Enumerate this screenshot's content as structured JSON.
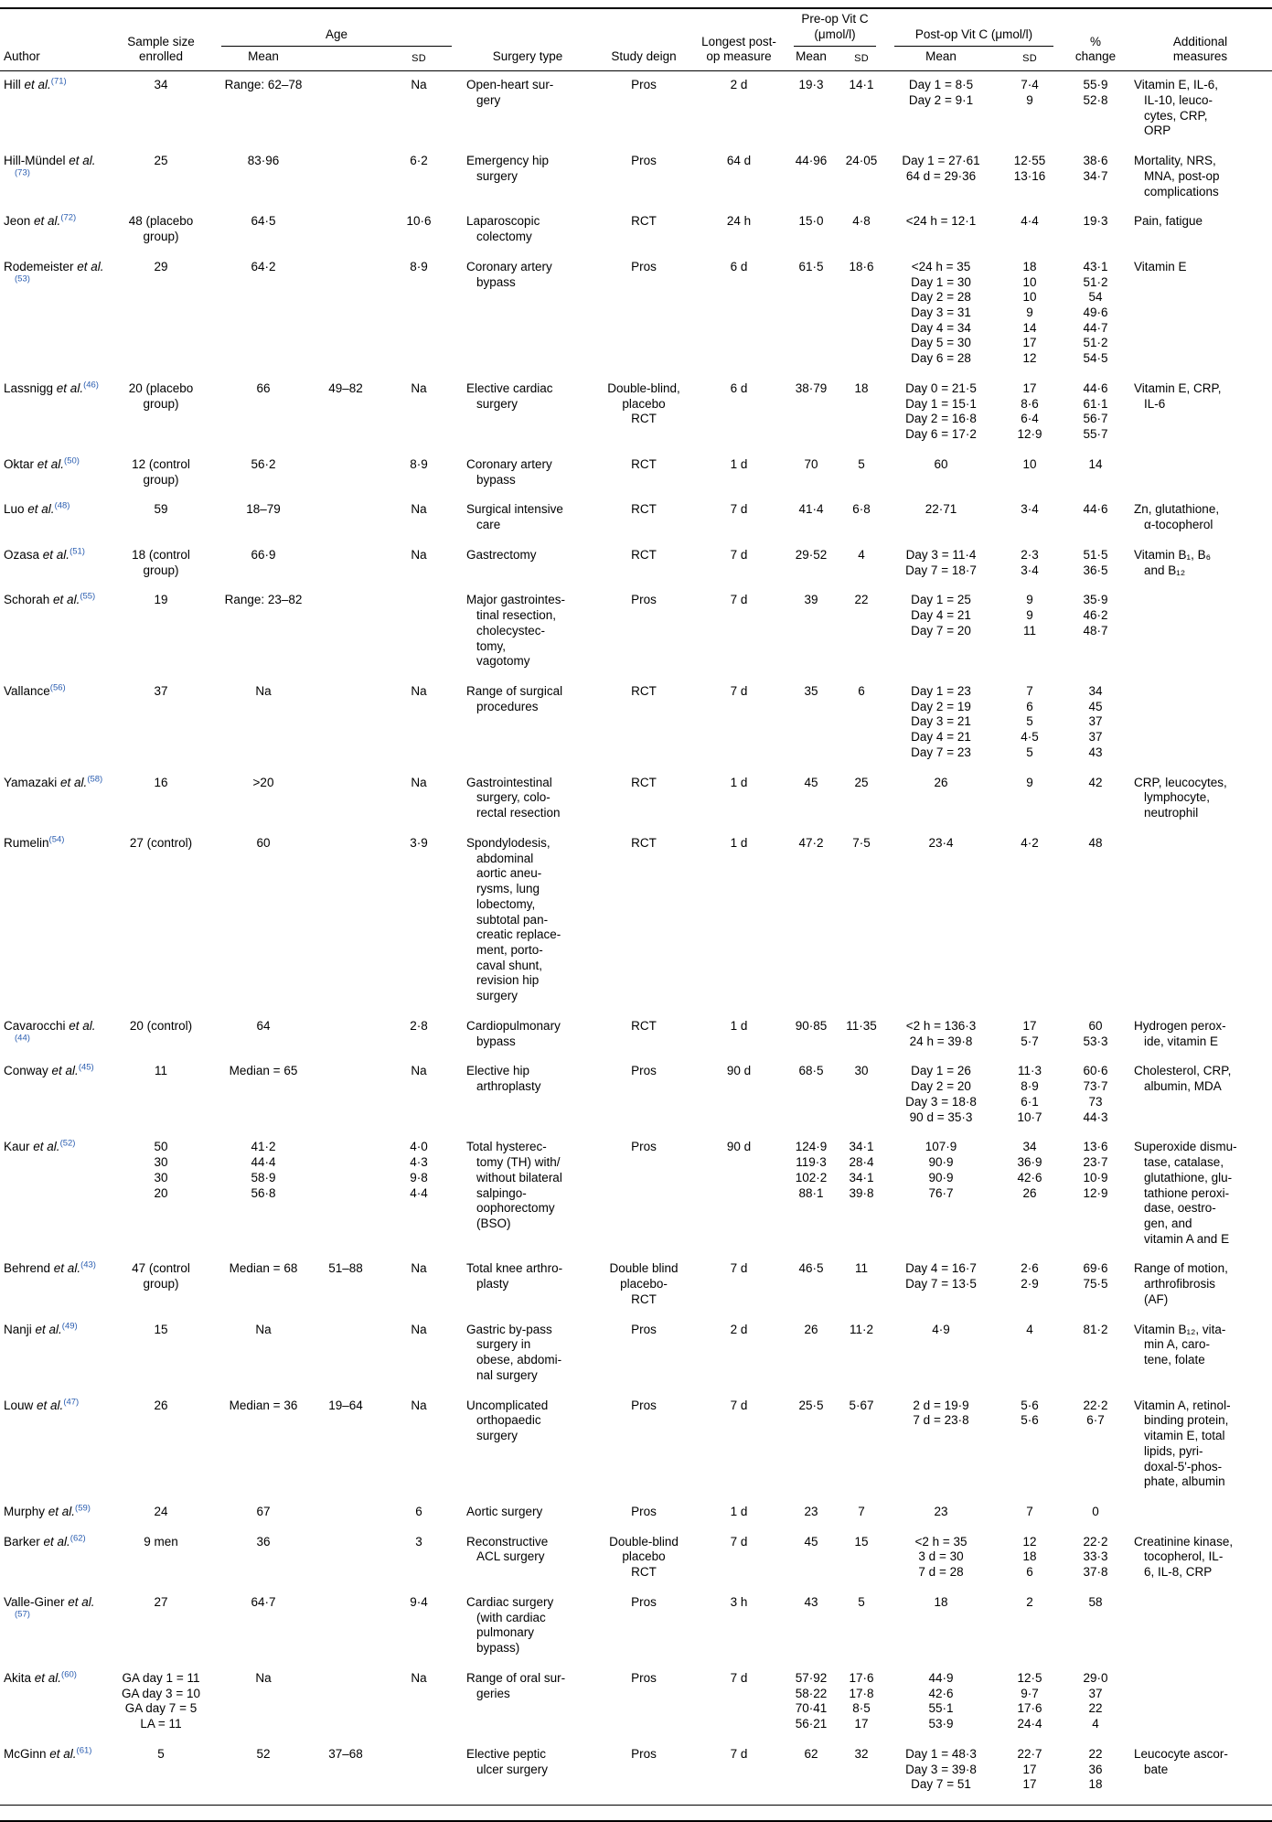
{
  "page": {
    "background": "#ffffff",
    "text_color": "#000000",
    "ref_color": "#2a5db0"
  },
  "table": {
    "headers": {
      "author": "Author",
      "sample_size": "Sample size\nenrolled",
      "age": "Age",
      "mean": "Mean",
      "sd": "SD",
      "surgery_type": "Surgery type",
      "study_design": "Study deign",
      "longest_postop": "Longest post-\nop measure",
      "preop": "Pre-op Vit C\n(μmol/l)",
      "postop": "Post-op Vit C (μmol/l)",
      "pct_change": "%\nchange",
      "additional": "Additional\nmeasures"
    },
    "rows": [
      {
        "name": "Hill",
        "etal": "et al.",
        "ref": "(71)",
        "sample": "34",
        "age_mean": "Range: 62–78",
        "age_range": "",
        "age_sd": "Na",
        "surgery": "Open-heart sur-\ngery",
        "design": "Pros",
        "longest": "2 d",
        "pre_mean": "19·3",
        "pre_sd": "14·1",
        "post_mean": "Day 1 = 8·5\nDay 2 = 9·1",
        "post_sd": "7·4\n9",
        "pct": "55·9\n52·8",
        "additional": "Vitamin E, IL-6,\nIL-10, leuco-\ncytes, CRP,\nORP"
      },
      {
        "name": "Hill-Mündel",
        "etal": "et al.",
        "ref": "(73)",
        "sample": "25",
        "age_mean": "83·96",
        "age_range": "",
        "age_sd": "6·2",
        "surgery": "Emergency hip\nsurgery",
        "design": "Pros",
        "longest": "64 d",
        "pre_mean": "44·96",
        "pre_sd": "24·05",
        "post_mean": "Day 1 = 27·61\n64 d = 29·36",
        "post_sd": "12·55\n13·16",
        "pct": "38·6\n34·7",
        "additional": "Mortality, NRS,\nMNA, post-op\ncomplications"
      },
      {
        "name": "Jeon",
        "etal": "et al.",
        "ref": "(72)",
        "sample": "48 (placebo\ngroup)",
        "age_mean": "64·5",
        "age_range": "",
        "age_sd": "10·6",
        "surgery": "Laparoscopic\ncolectomy",
        "design": "RCT",
        "longest": "24 h",
        "pre_mean": "15·0",
        "pre_sd": "4·8",
        "post_mean": "<24 h = 12·1",
        "post_sd": "4·4",
        "pct": "19·3",
        "additional": "Pain, fatigue"
      },
      {
        "name": "Rodemeister",
        "etal": "et al.",
        "ref": "(53)",
        "sample": "29",
        "age_mean": "64·2",
        "age_range": "",
        "age_sd": "8·9",
        "surgery": "Coronary artery\nbypass",
        "design": "Pros",
        "longest": "6 d",
        "pre_mean": "61·5",
        "pre_sd": "18·6",
        "post_mean": "<24 h = 35\nDay 1 = 30\nDay 2 = 28\nDay 3 = 31\nDay 4 = 34\nDay 5 = 30\nDay 6 = 28",
        "post_sd": "18\n10\n10\n9\n14\n17\n12",
        "pct": "43·1\n51·2\n54\n49·6\n44·7\n51·2\n54·5",
        "additional": "Vitamin E"
      },
      {
        "name": "Lassnigg",
        "etal": "et al.",
        "ref": "(46)",
        "sample": "20 (placebo\ngroup)",
        "age_mean": "66",
        "age_range": "49–82",
        "age_sd": "Na",
        "surgery": "Elective cardiac\nsurgery",
        "design": "Double-blind,\nplacebo\nRCT",
        "longest": "6 d",
        "pre_mean": "38·79",
        "pre_sd": "18",
        "post_mean": "Day 0 = 21·5\nDay 1 = 15·1\nDay 2 = 16·8\nDay 6 = 17·2",
        "post_sd": "17\n8·6\n6·4\n12·9",
        "pct": "44·6\n61·1\n56·7\n55·7",
        "additional": "Vitamin E, CRP,\nIL-6"
      },
      {
        "name": "Oktar",
        "etal": "et al.",
        "ref": "(50)",
        "sample": "12 (control\ngroup)",
        "age_mean": "56·2",
        "age_range": "",
        "age_sd": "8·9",
        "surgery": "Coronary artery\nbypass",
        "design": "RCT",
        "longest": "1 d",
        "pre_mean": "70",
        "pre_sd": "5",
        "post_mean": "60",
        "post_sd": "10",
        "pct": "14",
        "additional": ""
      },
      {
        "name": "Luo",
        "etal": "et al.",
        "ref": "(48)",
        "sample": "59",
        "age_mean": "18–79",
        "age_range": "",
        "age_sd": "Na",
        "surgery": "Surgical intensive\ncare",
        "design": "RCT",
        "longest": "7 d",
        "pre_mean": "41·4",
        "pre_sd": "6·8",
        "post_mean": "22·71",
        "post_sd": "3·4",
        "pct": "44·6",
        "additional": "Zn, glutathione,\nα-tocopherol"
      },
      {
        "name": "Ozasa",
        "etal": "et al.",
        "ref": "(51)",
        "sample": "18 (control\ngroup)",
        "age_mean": "66·9",
        "age_range": "",
        "age_sd": "Na",
        "surgery": "Gastrectomy",
        "design": "RCT",
        "longest": "7 d",
        "pre_mean": "29·52",
        "pre_sd": "4",
        "post_mean": "Day 3 = 11·4\nDay 7 = 18·7",
        "post_sd": "2·3\n3·4",
        "pct": "51·5\n36·5",
        "additional": "Vitamin B₁, B₆\nand B₁₂"
      },
      {
        "name": "Schorah",
        "etal": "et al.",
        "ref": "(55)",
        "sample": "19",
        "age_mean": "Range: 23–82",
        "age_range": "",
        "age_sd": "",
        "surgery": "Major gastrointes-\ntinal resection,\ncholecystec-\ntomy,\nvagotomy",
        "design": "Pros",
        "longest": "7 d",
        "pre_mean": "39",
        "pre_sd": "22",
        "post_mean": "Day 1 = 25\nDay 4 = 21\nDay 7 = 20",
        "post_sd": "9\n9\n11",
        "pct": "35·9\n46·2\n48·7",
        "additional": ""
      },
      {
        "name": "Vallance",
        "etal": "",
        "ref": "(56)",
        "sample": "37",
        "age_mean": "Na",
        "age_range": "",
        "age_sd": "Na",
        "surgery": "Range of surgical\nprocedures",
        "design": "RCT",
        "longest": "7 d",
        "pre_mean": "35",
        "pre_sd": "6",
        "post_mean": "Day 1 = 23\nDay 2 = 19\nDay 3 = 21\nDay 4 = 21\nDay 7 = 23",
        "post_sd": "7\n6\n5\n4·5\n5",
        "pct": "34\n45\n37\n37\n43",
        "additional": ""
      },
      {
        "name": "Yamazaki",
        "etal": "et al.",
        "ref": "(58)",
        "sample": "16",
        "age_mean": ">20",
        "age_range": "",
        "age_sd": "Na",
        "surgery": "Gastrointestinal\nsurgery, colo-\nrectal resection",
        "design": "RCT",
        "longest": "1 d",
        "pre_mean": "45",
        "pre_sd": "25",
        "post_mean": "26",
        "post_sd": "9",
        "pct": "42",
        "additional": "CRP, leucocytes,\nlymphocyte,\nneutrophil"
      },
      {
        "name": "Rumelin",
        "etal": "",
        "ref": "(54)",
        "sample": "27 (control)",
        "age_mean": "60",
        "age_range": "",
        "age_sd": "3·9",
        "surgery": "Spondylodesis,\nabdominal\naortic aneu-\nrysms, lung\nlobectomy,\nsubtotal pan-\ncreatic replace-\nment, porto-\ncaval shunt,\nrevision hip\nsurgery",
        "design": "RCT",
        "longest": "1 d",
        "pre_mean": "47·2",
        "pre_sd": "7·5",
        "post_mean": "23·4",
        "post_sd": "4·2",
        "pct": "48",
        "additional": ""
      },
      {
        "name": "Cavarocchi",
        "etal": "et al.",
        "ref": "(44)",
        "sample": "20 (control)",
        "age_mean": "64",
        "age_range": "",
        "age_sd": "2·8",
        "surgery": "Cardiopulmonary\nbypass",
        "design": "RCT",
        "longest": "1 d",
        "pre_mean": "90·85",
        "pre_sd": "11·35",
        "post_mean": "<2 h = 136·3\n24 h = 39·8",
        "post_sd": "17\n5·7",
        "pct": "60\n53·3",
        "additional": "Hydrogen perox-\nide, vitamin E"
      },
      {
        "name": "Conway",
        "etal": "et al.",
        "ref": "(45)",
        "sample": "11",
        "age_mean": "Median = 65",
        "age_range": "",
        "age_sd": "Na",
        "surgery": "Elective hip\narthroplasty",
        "design": "Pros",
        "longest": "90 d",
        "pre_mean": "68·5",
        "pre_sd": "30",
        "post_mean": "Day 1 = 26\nDay 2 = 20\nDay 3 = 18·8\n90 d = 35·3",
        "post_sd": "11·3\n8·9\n6·1\n10·7",
        "pct": "60·6\n73·7\n73\n44·3",
        "additional": "Cholesterol, CRP,\nalbumin, MDA"
      },
      {
        "name": "Kaur",
        "etal": "et al.",
        "ref": "(52)",
        "sample": "50\n30\n30\n20",
        "age_mean": "41·2\n44·4\n58·9\n56·8",
        "age_range": "",
        "age_sd": "4·0\n4·3\n9·8\n4·4",
        "surgery": "Total hysterec-\ntomy (TH) with/\nwithout bilateral\nsalpingo-\noophorectomy\n(BSO)",
        "design": "Pros",
        "longest": "90 d",
        "pre_mean": "124·9\n119·3\n102·2\n88·1",
        "pre_sd": "34·1\n28·4\n34·1\n39·8",
        "post_mean": "107·9\n90·9\n90·9\n76·7",
        "post_sd": "34\n36·9\n42·6\n26",
        "pct": "13·6\n23·7\n10·9\n12·9",
        "additional": "Superoxide dismu-\ntase, catalase,\nglutathione, glu-\ntathione peroxi-\ndase, oestro-\ngen, and\nvitamin A and E"
      },
      {
        "name": "Behrend",
        "etal": "et al.",
        "ref": "(43)",
        "sample": "47 (control\ngroup)",
        "age_mean": "Median = 68",
        "age_range": "51–88",
        "age_sd": "Na",
        "surgery": "Total knee arthro-\nplasty",
        "design": "Double blind\nplacebo-\nRCT",
        "longest": "7 d",
        "pre_mean": "46·5",
        "pre_sd": "11",
        "post_mean": "Day 4 = 16·7\nDay 7 = 13·5",
        "post_sd": "2·6\n2·9",
        "pct": "69·6\n75·5",
        "additional": "Range of motion,\narthrofibrosis\n(AF)"
      },
      {
        "name": "Nanji",
        "etal": "et al.",
        "ref": "(49)",
        "sample": "15",
        "age_mean": "Na",
        "age_range": "",
        "age_sd": "Na",
        "surgery": "Gastric by-pass\nsurgery in\nobese, abdomi-\nnal surgery",
        "design": "Pros",
        "longest": "2 d",
        "pre_mean": "26",
        "pre_sd": "11·2",
        "post_mean": "4·9",
        "post_sd": "4",
        "pct": "81·2",
        "additional": "Vitamin B₁₂, vita-\nmin A, caro-\ntene, folate"
      },
      {
        "name": "Louw",
        "etal": "et al.",
        "ref": "(47)",
        "sample": "26",
        "age_mean": "Median = 36",
        "age_range": "19–64",
        "age_sd": "Na",
        "surgery": "Uncomplicated\northopaedic\nsurgery",
        "design": "Pros",
        "longest": "7 d",
        "pre_mean": "25·5",
        "pre_sd": "5·67",
        "post_mean": "2 d = 19·9\n7 d = 23·8",
        "post_sd": "5·6\n5·6",
        "pct": "22·2\n6·7",
        "additional": "Vitamin A, retinol-\nbinding protein,\nvitamin E, total\nlipids, pyri-\ndoxal-5'-phos-\nphate, albumin"
      },
      {
        "name": "Murphy",
        "etal": "et al.",
        "ref": "(59)",
        "sample": "24",
        "age_mean": "67",
        "age_range": "",
        "age_sd": "6",
        "surgery": "Aortic surgery",
        "design": "Pros",
        "longest": "1 d",
        "pre_mean": "23",
        "pre_sd": "7",
        "post_mean": "23",
        "post_sd": "7",
        "pct": "0",
        "additional": ""
      },
      {
        "name": "Barker",
        "etal": "et al.",
        "ref": "(62)",
        "sample": "9 men",
        "age_mean": "36",
        "age_range": "",
        "age_sd": "3",
        "surgery": "Reconstructive\nACL surgery",
        "design": "Double-blind\nplacebo\nRCT",
        "longest": "7 d",
        "pre_mean": "45",
        "pre_sd": "15",
        "post_mean": "<2 h = 35\n3 d = 30\n7 d = 28",
        "post_sd": "12\n18\n6",
        "pct": "22·2\n33·3\n37·8",
        "additional": "Creatinine kinase,\ntocopherol, IL-\n6, IL-8, CRP"
      },
      {
        "name": "Valle-Giner",
        "etal": "et al.",
        "ref": "(57)",
        "sample": "27",
        "age_mean": "64·7",
        "age_range": "",
        "age_sd": "9·4",
        "surgery": "Cardiac surgery\n(with cardiac\npulmonary\nbypass)",
        "design": "Pros",
        "longest": "3 h",
        "pre_mean": "43",
        "pre_sd": "5",
        "post_mean": "18",
        "post_sd": "2",
        "pct": "58",
        "additional": ""
      },
      {
        "name": "Akita",
        "etal": "et al.",
        "ref": "(60)",
        "sample": "GA day 1 = 11\nGA day 3 = 10\nGA day 7 = 5\nLA = 11",
        "age_mean": "Na",
        "age_range": "",
        "age_sd": "Na",
        "surgery": "Range of oral sur-\ngeries",
        "design": "Pros",
        "longest": "7 d",
        "pre_mean": "57·92\n58·22\n70·41\n56·21",
        "pre_sd": "17·6\n17·8\n8·5\n17",
        "post_mean": "44·9\n42·6\n55·1\n53·9",
        "post_sd": "12·5\n9·7\n17·6\n24·4",
        "pct": "29·0\n37\n22\n4",
        "additional": ""
      },
      {
        "name": "McGinn",
        "etal": "et al.",
        "ref": "(61)",
        "sample": "5",
        "age_mean": "52",
        "age_range": "37–68",
        "age_sd": "",
        "surgery": "Elective peptic\nulcer surgery",
        "design": "Pros",
        "longest": "7 d",
        "pre_mean": "62",
        "pre_sd": "32",
        "post_mean": "Day 1 = 48·3\nDay 3 = 39·8\nDay 7 = 51",
        "post_sd": "22·7\n17\n17",
        "pct": "22\n36\n18",
        "additional": "Leucocyte ascor-\nbate"
      }
    ]
  }
}
